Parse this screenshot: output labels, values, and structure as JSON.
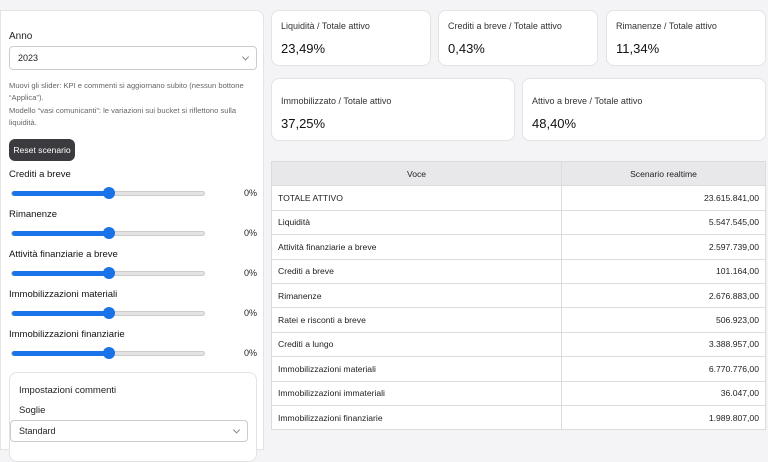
{
  "sidebar": {
    "year_label": "Anno",
    "year": "2023",
    "note_1": "Muovi gli slider: KPI e commenti si aggiornano subito (nessun bottone “Applica”).",
    "note_2": "Modello “vasi comunicanti”: le variazioni sui bucket si riflettono sulla liquidità.",
    "reset": "Reset scenario",
    "sliders": [
      {
        "label": "Crediti a breve",
        "value": "0%"
      },
      {
        "label": "Rimanenze",
        "value": "0%"
      },
      {
        "label": "Attività finanziarie a breve",
        "value": "0%"
      },
      {
        "label": "Immobilizzazioni materiali",
        "value": "0%"
      },
      {
        "label": "Immobilizzazioni finanziarie",
        "value": "0%"
      }
    ],
    "settings": {
      "title": "Impostazioni commenti",
      "thresholds_label": "Soglie",
      "thresholds": "Standard"
    }
  },
  "kpis": [
    {
      "label": "Liquidità / Totale attivo",
      "value": "23,49%"
    },
    {
      "label": "Crediti a breve / Totale attivo",
      "value": "0,43%"
    },
    {
      "label": "Rimanenze / Totale attivo",
      "value": "11,34%"
    },
    {
      "label": "Immobilizzato / Totale attivo",
      "value": "37,25%"
    },
    {
      "label": "Attivo a breve / Totale attivo",
      "value": "48,40%"
    }
  ],
  "table": {
    "columns": [
      "Voce",
      "Scenario realtime"
    ],
    "rows": [
      [
        "TOTALE ATTIVO",
        "23.615.841,00"
      ],
      [
        "Liquidità",
        "5.547.545,00"
      ],
      [
        "Attività finanziarie a breve",
        "2.597.739,00"
      ],
      [
        "Crediti a breve",
        "101.164,00"
      ],
      [
        "Rimanenze",
        "2.676.883,00"
      ],
      [
        "Ratei e risconti a breve",
        "506.923,00"
      ],
      [
        "Crediti a lungo",
        "3.388.957,00"
      ],
      [
        "Immobilizzazioni materiali",
        "6.770.776,00"
      ],
      [
        "Immobilizzazioni immateriali",
        "36.047,00"
      ],
      [
        "Immobilizzazioni finanziarie",
        "1.989.807,00"
      ]
    ]
  }
}
